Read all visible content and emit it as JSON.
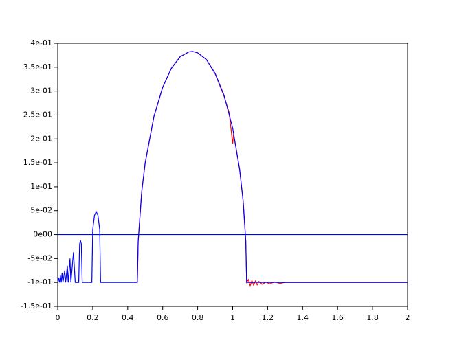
{
  "chart_data": {
    "type": "line",
    "xlim": [
      0,
      2
    ],
    "xticks": [
      0,
      0.2,
      0.4,
      0.6,
      0.8,
      1,
      1.2,
      1.4,
      1.6,
      1.8,
      2
    ],
    "ylim": [
      -0.15,
      0.4
    ],
    "yticks": [
      {
        "value": -0.15,
        "label": "-1.5e-01"
      },
      {
        "value": -0.1,
        "label": "-1e-01"
      },
      {
        "value": -0.05,
        "label": "-5e-02"
      },
      {
        "value": 0,
        "label": "0e00"
      },
      {
        "value": 0.05,
        "label": "5e-02"
      },
      {
        "value": 0.1,
        "label": "1e-01"
      },
      {
        "value": 0.15,
        "label": "1.5e-01"
      },
      {
        "value": 0.2,
        "label": "2e-01"
      },
      {
        "value": 0.25,
        "label": "2.5e-01"
      },
      {
        "value": 0.3,
        "label": "3e-01"
      },
      {
        "value": 0.35,
        "label": "3.5e-01"
      },
      {
        "value": 0.4,
        "label": "4e-01"
      }
    ],
    "series": [
      {
        "color": "#ff0000",
        "x": [
          0.455,
          0.46,
          0.48,
          0.5,
          0.55,
          0.6,
          0.65,
          0.7,
          0.75,
          0.77,
          0.8,
          0.85,
          0.9,
          0.95,
          0.98,
          1.0,
          1.005,
          1.04,
          1.06,
          1.075,
          1.08,
          1.09,
          1.1,
          1.11,
          1.12,
          1.13,
          1.14,
          1.15,
          1.17,
          1.19,
          1.21,
          1.24,
          1.27,
          1.3,
          2
        ],
        "values": [
          -0.1,
          -0.014,
          0.089,
          0.15,
          0.247,
          0.308,
          0.348,
          0.372,
          0.382,
          0.383,
          0.38,
          0.366,
          0.336,
          0.29,
          0.255,
          0.19,
          0.21,
          0.136,
          0.07,
          -0.014,
          -0.1,
          -0.094,
          -0.107,
          -0.096,
          -0.106,
          -0.097,
          -0.105,
          -0.098,
          -0.104,
          -0.099,
          -0.103,
          -0.099,
          -0.102,
          -0.1,
          -0.1
        ]
      },
      {
        "color": "#0000ff",
        "x": [
          0,
          0.005,
          0.01,
          0.015,
          0.02,
          0.025,
          0.03,
          0.04,
          0.045,
          0.055,
          0.06,
          0.07,
          0.075,
          0.09,
          0.1,
          0.12,
          0.125,
          0.13,
          0.135,
          0.14,
          0.195,
          0.2,
          0.21,
          0.22,
          0.23,
          0.24,
          0.245,
          0.45,
          0.455,
          0.46,
          0.48,
          0.5,
          0.55,
          0.6,
          0.65,
          0.7,
          0.75,
          0.77,
          0.8,
          0.85,
          0.9,
          0.95,
          1.0,
          1.04,
          1.06,
          1.075,
          1.08,
          2
        ],
        "values": [
          -0.1,
          -0.09,
          -0.1,
          -0.085,
          -0.1,
          -0.08,
          -0.1,
          -0.075,
          -0.1,
          -0.065,
          -0.1,
          -0.05,
          -0.1,
          -0.037,
          -0.1,
          -0.1,
          -0.02,
          -0.012,
          -0.02,
          -0.1,
          -0.1,
          0.01,
          0.04,
          0.048,
          0.04,
          0.01,
          -0.1,
          -0.1,
          -0.1,
          -0.014,
          0.089,
          0.15,
          0.247,
          0.308,
          0.348,
          0.372,
          0.382,
          0.383,
          0.38,
          0.366,
          0.337,
          0.292,
          0.223,
          0.136,
          0.07,
          -0.014,
          -0.1,
          -0.1
        ]
      },
      {
        "color": "#0000ff",
        "x": [
          0,
          2
        ],
        "values": [
          0,
          0
        ]
      }
    ]
  }
}
